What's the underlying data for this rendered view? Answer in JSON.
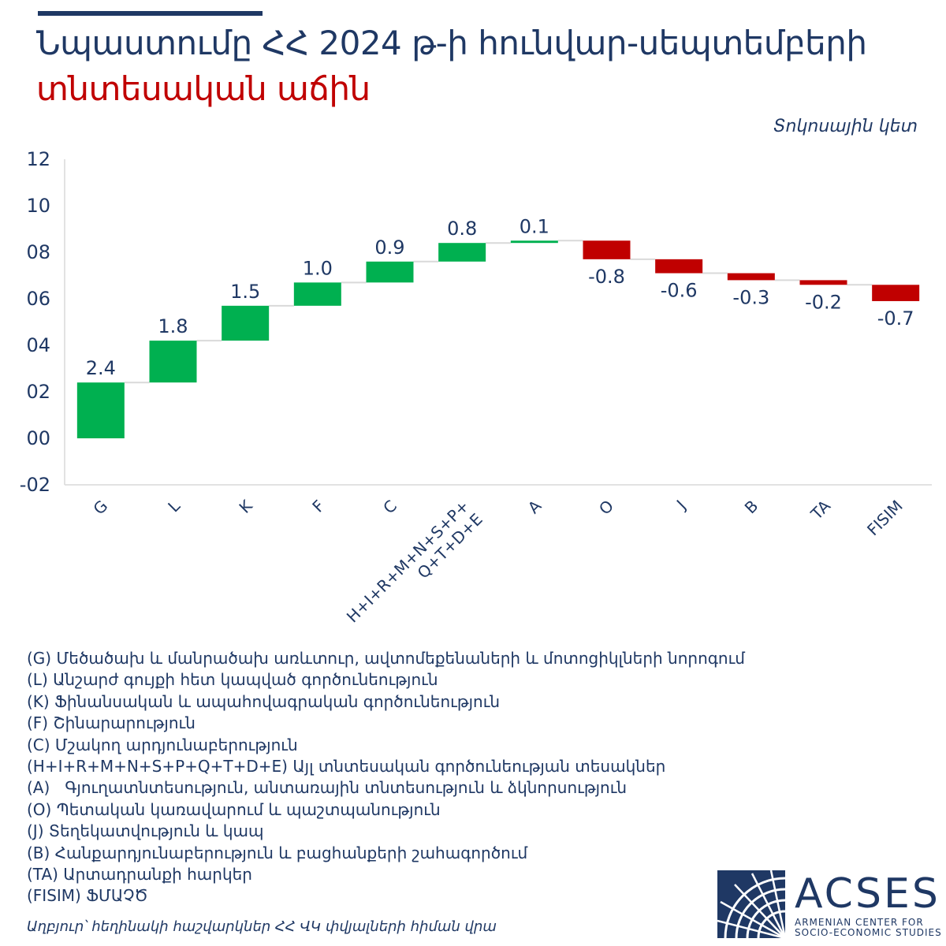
{
  "header": {
    "title_line1": "Նպաստումը ՀՀ 2024 թ-ի հունվար-սեպտեմբերի",
    "title_line2": "տնտեսական աճին",
    "unit": "Տոկոսային կետ"
  },
  "colors": {
    "positive": "#00b050",
    "negative": "#c00000",
    "text": "#1f3864",
    "title_accent": "#c00000"
  },
  "chart_data": {
    "type": "waterfall",
    "title": "Նպաստումը ՀՀ 2024 թ-ի հունվար-սեպտեմբերի տնտեսական աճին",
    "ylabel": "Տոկոսային կետ",
    "ylim": [
      -2,
      12
    ],
    "yticks": [
      -2,
      0,
      2,
      4,
      6,
      8,
      10,
      12
    ],
    "ytick_labels": [
      "-02",
      "00",
      "02",
      "04",
      "06",
      "08",
      "10",
      "12"
    ],
    "categories": [
      "G",
      "L",
      "K",
      "F",
      "C",
      "H+I+R+M+N+S+P+\nQ+T+D+E",
      "A",
      "O",
      "J",
      "B",
      "TA",
      "FISIM"
    ],
    "values": [
      2.4,
      1.8,
      1.5,
      1.0,
      0.9,
      0.8,
      0.1,
      -0.8,
      -0.6,
      -0.3,
      -0.2,
      -0.7
    ],
    "value_labels": [
      "2.4",
      "1.8",
      "1.5",
      "1.0",
      "0.9",
      "0.8",
      "0.1",
      "-0.8",
      "-0.6",
      "-0.3",
      "-0.2",
      "-0.7"
    ],
    "grid": false,
    "legend": "none"
  },
  "legend_items": [
    "(G) Մեծածախ և մանրածախ առևտուր, ավտոմեքենաների և մոտոցիկլների նորոգում",
    "(L) Անշարժ գույքի հետ կապված գործունեություն",
    "(K) Ֆինանսական և ապահովագրական գործունեություն",
    "(F) Շինարարություն",
    "(C) Մշակող արդյունաբերություն",
    "(H+I+R+M+N+S+P+Q+T+D+E) Այլ տնտեսական գործունեության տեսակներ",
    "(A)   Գյուղատնտեսություն, անտառային տնտեսություն և ձկնորսություն",
    "(O) Պետական կառավարում և պաշտպանություն",
    "(J) Տեղեկատվություն և կապ",
    "(B) Հանքարդյունաբերություն և բացհանքերի շահագործում",
    "(TA) Արտադրանքի հարկեր",
    "(FISIM) ՖՄԱՉԾ"
  ],
  "source": "Աղբյուր՝ հեղինակի հաշվարկներ ՀՀ ՎԿ փվյալների հիման վրա",
  "logo": {
    "name": "ACSES",
    "subtitle_line1": "ARMENIAN CENTER FOR",
    "subtitle_line2": "SOCIO-ECONOMIC STUDIES"
  }
}
